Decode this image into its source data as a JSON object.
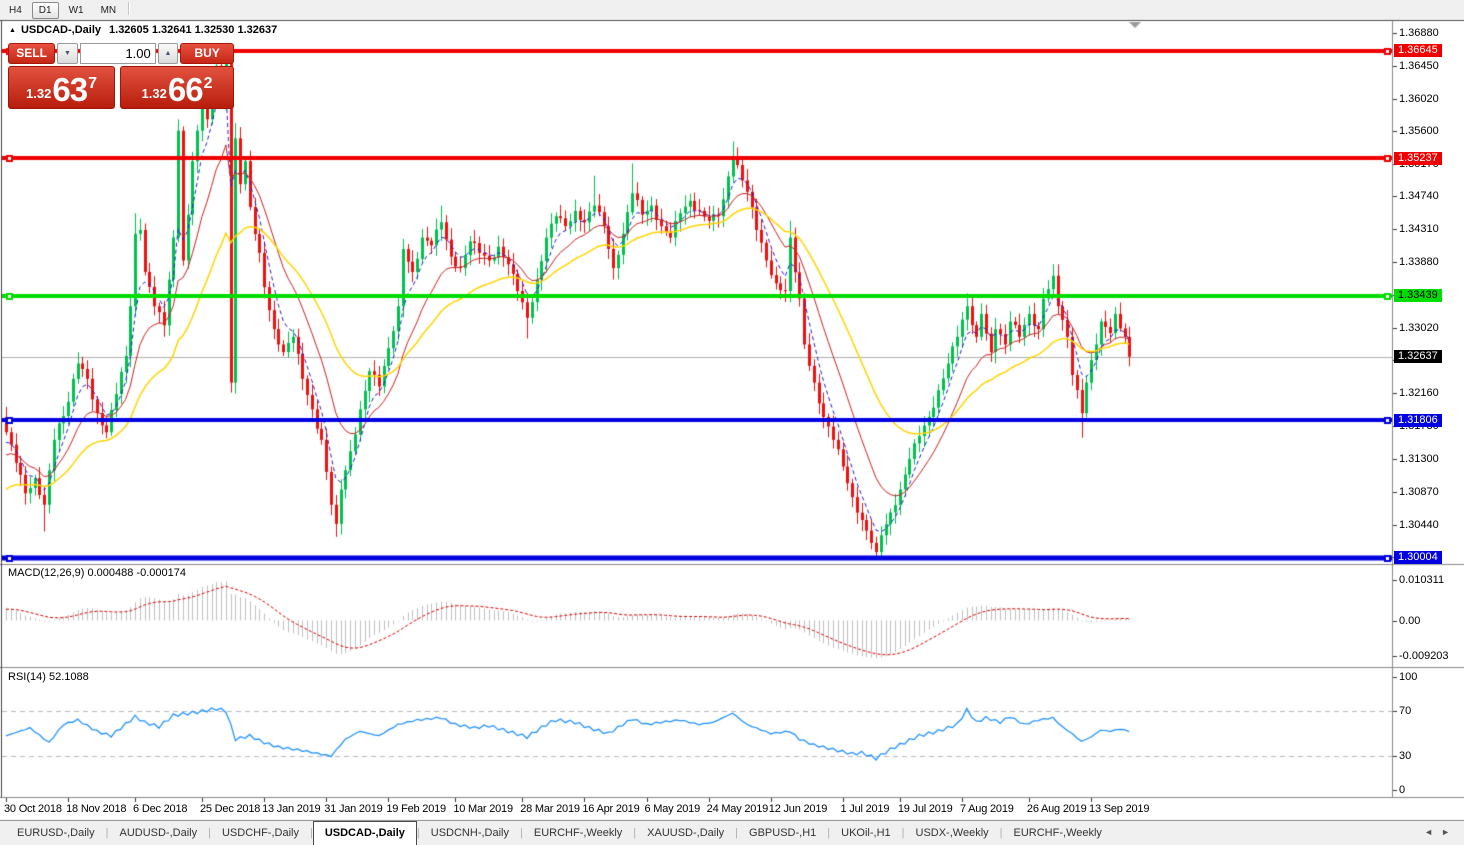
{
  "toolbar": {
    "timeframes": [
      "H4",
      "D1",
      "W1",
      "MN"
    ],
    "active": "D1"
  },
  "window_title": {
    "collapse_icon": "▲",
    "symbol": "USDCAD-,Daily",
    "ohlc": "1.32605 1.32641 1.32530 1.32637"
  },
  "trade_panel": {
    "sell_label": "SELL",
    "buy_label": "BUY",
    "volume": "1.00",
    "spinner_down_icon": "▼",
    "spinner_up_icon": "▲",
    "sell_price": {
      "integer": "1.32",
      "big": "63",
      "pip": "7"
    },
    "buy_price": {
      "integer": "1.32",
      "big": "66",
      "pip": "2"
    }
  },
  "price_axis": {
    "ticks": [
      "1.36880",
      "1.36450",
      "1.36020",
      "1.35600",
      "1.35170",
      "1.34740",
      "1.34310",
      "1.33880",
      "1.33450",
      "1.33020",
      "1.32590",
      "1.32160",
      "1.31730",
      "1.31300",
      "1.30870",
      "1.30440",
      "1.30010"
    ],
    "badges": [
      {
        "text": "1.36645",
        "bg": "#f00000",
        "fg": "#ffffff"
      },
      {
        "text": "1.35237",
        "bg": "#f00000",
        "fg": "#ffffff"
      },
      {
        "text": "1.33439",
        "bg": "#00dd00",
        "fg": "#000000"
      },
      {
        "text": "1.32637",
        "bg": "#000000",
        "fg": "#ffffff"
      },
      {
        "text": "1.31806",
        "bg": "#0000e0",
        "fg": "#ffffff"
      },
      {
        "text": "1.30004",
        "bg": "#0000e0",
        "fg": "#ffffff"
      }
    ]
  },
  "macd_panel": {
    "label": "MACD(12,26,9) 0.000488 -0.000174",
    "main_value": "0.000488",
    "signal_value": "-0.000174",
    "axis": [
      "0.010311",
      "0.00",
      "-0.009203"
    ]
  },
  "rsi_panel": {
    "label": "RSI(14) 52.1088",
    "value": "52.1088",
    "axis": [
      "100",
      "70",
      "30",
      "0"
    ]
  },
  "date_axis": [
    {
      "label": "30 Oct 2018",
      "i": 0
    },
    {
      "label": "18 Nov 2018",
      "i": 13
    },
    {
      "label": "6 Dec 2018",
      "i": 27
    },
    {
      "label": "25 Dec 2018",
      "i": 41
    },
    {
      "label": "13 Jan 2019",
      "i": 54
    },
    {
      "label": "31 Jan 2019",
      "i": 67
    },
    {
      "label": "19 Feb 2019",
      "i": 80
    },
    {
      "label": "10 Mar 2019",
      "i": 94
    },
    {
      "label": "28 Mar 2019",
      "i": 108
    },
    {
      "label": "16 Apr 2019",
      "i": 121
    },
    {
      "label": "6 May 2019",
      "i": 134
    },
    {
      "label": "24 May 2019",
      "i": 147
    },
    {
      "label": "12 Jun 2019",
      "i": 160
    },
    {
      "label": "1 Jul 2019",
      "i": 175
    },
    {
      "label": "19 Jul 2019",
      "i": 187
    },
    {
      "label": "7 Aug 2019",
      "i": 200
    },
    {
      "label": "26 Aug 2019",
      "i": 214
    },
    {
      "label": "13 Sep 2019",
      "i": 227
    }
  ],
  "tabs": {
    "items": [
      {
        "label": "EURUSD-,Daily",
        "active": false
      },
      {
        "label": "AUDUSD-,Daily",
        "active": false
      },
      {
        "label": "USDCHF-,Daily",
        "active": false
      },
      {
        "label": "USDCAD-,Daily",
        "active": true
      },
      {
        "label": "USDCNH-,Daily",
        "active": false
      },
      {
        "label": "EURCHF-,Weekly",
        "active": false
      },
      {
        "label": "XAUUSD-,Daily",
        "active": false
      },
      {
        "label": "GBPUSD-,H1",
        "active": false
      },
      {
        "label": "UKOil-,H1",
        "active": false
      },
      {
        "label": "USDX-,Weekly",
        "active": false
      },
      {
        "label": "EURCHF-,Weekly",
        "active": false
      }
    ],
    "scroll_left_icon": "◄",
    "scroll_right_icon": "►"
  },
  "chart_data": {
    "type": "candlestick",
    "symbol": "USDCAD-",
    "timeframe": "Daily",
    "title_ohlc": {
      "open": 1.32605,
      "high": 1.32641,
      "low": 1.3253,
      "close": 1.32637
    },
    "current_price": 1.32637,
    "n_candles": 236,
    "colors": {
      "up": "#00c050",
      "down": "#ee1111",
      "ma_fast": "#2222cc",
      "ma_mid": "#cc2222",
      "ma_slow": "#ffd500",
      "level_red": "#f00000",
      "level_green": "#00dd00",
      "level_blue": "#0000e0",
      "current_line": "#b0b0b0",
      "macd_hist": "#c0c0c0",
      "macd_signal": "#dd0000",
      "rsi_line": "#1e90ff"
    },
    "levels": [
      {
        "price": 1.36645,
        "color": "#f00000",
        "w": 4
      },
      {
        "price": 1.35237,
        "color": "#f00000",
        "w": 4
      },
      {
        "price": 1.33439,
        "color": "#00dd00",
        "w": 4
      },
      {
        "price": 1.31806,
        "color": "#0000e0",
        "w": 4
      },
      {
        "price": 1.30004,
        "color": "#0000e0",
        "w": 5
      }
    ],
    "close_anchors": [
      [
        0,
        1.3165
      ],
      [
        2,
        1.3125
      ],
      [
        4,
        1.3085
      ],
      [
        6,
        1.3105
      ],
      [
        8,
        1.307
      ],
      [
        10,
        1.3155
      ],
      [
        13,
        1.3205
      ],
      [
        15,
        1.3255
      ],
      [
        17,
        1.3235
      ],
      [
        19,
        1.319
      ],
      [
        21,
        1.3165
      ],
      [
        23,
        1.3215
      ],
      [
        25,
        1.3265
      ],
      [
        26,
        1.333
      ],
      [
        27,
        1.3425
      ],
      [
        28,
        1.343
      ],
      [
        29,
        1.3375
      ],
      [
        31,
        1.333
      ],
      [
        33,
        1.3305
      ],
      [
        34,
        1.3365
      ],
      [
        35,
        1.342
      ],
      [
        36,
        1.356
      ],
      [
        37,
        1.339
      ],
      [
        38,
        1.345
      ],
      [
        39,
        1.352
      ],
      [
        40,
        1.356
      ],
      [
        41,
        1.36
      ],
      [
        42,
        1.3575
      ],
      [
        43,
        1.3615
      ],
      [
        44,
        1.3645
      ],
      [
        45,
        1.36
      ],
      [
        46,
        1.3655
      ],
      [
        47,
        1.323
      ],
      [
        48,
        1.355
      ],
      [
        49,
        1.349
      ],
      [
        50,
        1.352
      ],
      [
        51,
        1.346
      ],
      [
        53,
        1.34
      ],
      [
        54,
        1.3355
      ],
      [
        56,
        1.33
      ],
      [
        58,
        1.327
      ],
      [
        60,
        1.329
      ],
      [
        62,
        1.3235
      ],
      [
        64,
        1.3195
      ],
      [
        66,
        1.3155
      ],
      [
        68,
        1.307
      ],
      [
        69,
        1.3045
      ],
      [
        70,
        1.309
      ],
      [
        72,
        1.314
      ],
      [
        74,
        1.3195
      ],
      [
        76,
        1.3245
      ],
      [
        78,
        1.3225
      ],
      [
        80,
        1.3275
      ],
      [
        82,
        1.333
      ],
      [
        83,
        1.3405
      ],
      [
        85,
        1.3375
      ],
      [
        87,
        1.342
      ],
      [
        89,
        1.341
      ],
      [
        91,
        1.344
      ],
      [
        93,
        1.3395
      ],
      [
        95,
        1.338
      ],
      [
        97,
        1.3415
      ],
      [
        99,
        1.34
      ],
      [
        101,
        1.339
      ],
      [
        103,
        1.3408
      ],
      [
        105,
        1.3385
      ],
      [
        107,
        1.335
      ],
      [
        109,
        1.3315
      ],
      [
        111,
        1.3365
      ],
      [
        113,
        1.342
      ],
      [
        115,
        1.3448
      ],
      [
        117,
        1.3435
      ],
      [
        119,
        1.3455
      ],
      [
        121,
        1.344
      ],
      [
        123,
        1.3462
      ],
      [
        125,
        1.3435
      ],
      [
        127,
        1.338
      ],
      [
        129,
        1.3425
      ],
      [
        131,
        1.3478
      ],
      [
        133,
        1.345
      ],
      [
        135,
        1.3462
      ],
      [
        137,
        1.3435
      ],
      [
        139,
        1.342
      ],
      [
        141,
        1.3452
      ],
      [
        143,
        1.3468
      ],
      [
        145,
        1.3455
      ],
      [
        147,
        1.3442
      ],
      [
        149,
        1.3448
      ],
      [
        150,
        1.347
      ],
      [
        151,
        1.35
      ],
      [
        152,
        1.3525
      ],
      [
        153,
        1.3515
      ],
      [
        155,
        1.348
      ],
      [
        157,
        1.343
      ],
      [
        159,
        1.339
      ],
      [
        161,
        1.336
      ],
      [
        163,
        1.335
      ],
      [
        164,
        1.342
      ],
      [
        166,
        1.334
      ],
      [
        167,
        1.328
      ],
      [
        169,
        1.323
      ],
      [
        171,
        1.3185
      ],
      [
        173,
        1.3155
      ],
      [
        175,
        1.312
      ],
      [
        177,
        1.308
      ],
      [
        179,
        1.305
      ],
      [
        181,
        1.302
      ],
      [
        182,
        1.3008
      ],
      [
        183,
        1.303
      ],
      [
        185,
        1.306
      ],
      [
        187,
        1.309
      ],
      [
        189,
        1.313
      ],
      [
        191,
        1.316
      ],
      [
        193,
        1.3185
      ],
      [
        195,
        1.322
      ],
      [
        197,
        1.3255
      ],
      [
        199,
        1.329
      ],
      [
        201,
        1.333
      ],
      [
        203,
        1.329
      ],
      [
        204,
        1.332
      ],
      [
        206,
        1.327
      ],
      [
        207,
        1.33
      ],
      [
        209,
        1.328
      ],
      [
        210,
        1.331
      ],
      [
        212,
        1.329
      ],
      [
        214,
        1.332
      ],
      [
        216,
        1.33
      ],
      [
        217,
        1.334
      ],
      [
        219,
        1.337
      ],
      [
        220,
        1.333
      ],
      [
        222,
        1.329
      ],
      [
        223,
        1.324
      ],
      [
        225,
        1.319
      ],
      [
        226,
        1.323
      ],
      [
        228,
        1.328
      ],
      [
        229,
        1.331
      ],
      [
        231,
        1.3295
      ],
      [
        232,
        1.332
      ],
      [
        234,
        1.329
      ],
      [
        235,
        1.3264
      ]
    ],
    "wick_overrides": {
      "8": {
        "l": 1.3035
      },
      "27": {
        "h": 1.3452
      },
      "44": {
        "h": 1.36645
      },
      "46": {
        "h": 1.3663
      },
      "47": {
        "l": 1.3217,
        "h": 1.3658
      },
      "48": {
        "h": 1.357
      },
      "69": {
        "l": 1.3028
      },
      "91": {
        "h": 1.3462
      },
      "109": {
        "l": 1.3288
      },
      "123": {
        "h": 1.3501
      },
      "131": {
        "h": 1.3517
      },
      "152": {
        "h": 1.3546
      },
      "164": {
        "h": 1.3442
      },
      "182": {
        "l": 1.2999
      },
      "201": {
        "h": 1.3347
      },
      "219": {
        "h": 1.3385
      },
      "225": {
        "l": 1.3158
      }
    },
    "moving_averages": [
      {
        "period": 5,
        "seed": 1.3145,
        "color": "#2222cc",
        "dash": [
          4,
          3
        ],
        "width": 1
      },
      {
        "period": 13,
        "seed": 1.313,
        "color": "#cc2222",
        "dash": [],
        "width": 1
      },
      {
        "period": 30,
        "seed": 1.3085,
        "color": "#ffd500",
        "dash": [],
        "width": 1.5
      }
    ],
    "macd": {
      "fast": 12,
      "slow": 26,
      "signal": 9,
      "seed_fast": 1.316,
      "seed_slow": 1.3125,
      "seed_signal": 0.0028
    },
    "rsi": {
      "period": 14,
      "anchors": [
        [
          0,
          48
        ],
        [
          5,
          55
        ],
        [
          9,
          42
        ],
        [
          12,
          58
        ],
        [
          15,
          62
        ],
        [
          19,
          52
        ],
        [
          22,
          48
        ],
        [
          27,
          65
        ],
        [
          29,
          60
        ],
        [
          32,
          56
        ],
        [
          35,
          66
        ],
        [
          40,
          69
        ],
        [
          44,
          72
        ],
        [
          46,
          70
        ],
        [
          48,
          45
        ],
        [
          51,
          48
        ],
        [
          54,
          42
        ],
        [
          57,
          38
        ],
        [
          62,
          35
        ],
        [
          68,
          30
        ],
        [
          71,
          45
        ],
        [
          74,
          52
        ],
        [
          78,
          48
        ],
        [
          82,
          58
        ],
        [
          86,
          62
        ],
        [
          91,
          64
        ],
        [
          94,
          58
        ],
        [
          98,
          55
        ],
        [
          101,
          57
        ],
        [
          109,
          47
        ],
        [
          113,
          58
        ],
        [
          115,
          62
        ],
        [
          119,
          60
        ],
        [
          122,
          55
        ],
        [
          126,
          50
        ],
        [
          131,
          63
        ],
        [
          134,
          58
        ],
        [
          137,
          60
        ],
        [
          141,
          62
        ],
        [
          145,
          58
        ],
        [
          148,
          60
        ],
        [
          152,
          68
        ],
        [
          155,
          58
        ],
        [
          160,
          50
        ],
        [
          164,
          52
        ],
        [
          166,
          45
        ],
        [
          169,
          40
        ],
        [
          173,
          36
        ],
        [
          177,
          32
        ],
        [
          179,
          33
        ],
        [
          182,
          28
        ],
        [
          185,
          36
        ],
        [
          188,
          42
        ],
        [
          191,
          48
        ],
        [
          195,
          52
        ],
        [
          199,
          58
        ],
        [
          201,
          71
        ],
        [
          203,
          60
        ],
        [
          205,
          64
        ],
        [
          208,
          60
        ],
        [
          210,
          65
        ],
        [
          213,
          58
        ],
        [
          216,
          62
        ],
        [
          219,
          64
        ],
        [
          221,
          56
        ],
        [
          223,
          50
        ],
        [
          225,
          43
        ],
        [
          227,
          47
        ],
        [
          229,
          53
        ],
        [
          231,
          52
        ],
        [
          233,
          54
        ],
        [
          235,
          52.1
        ]
      ],
      "levels": [
        70,
        30
      ]
    }
  }
}
